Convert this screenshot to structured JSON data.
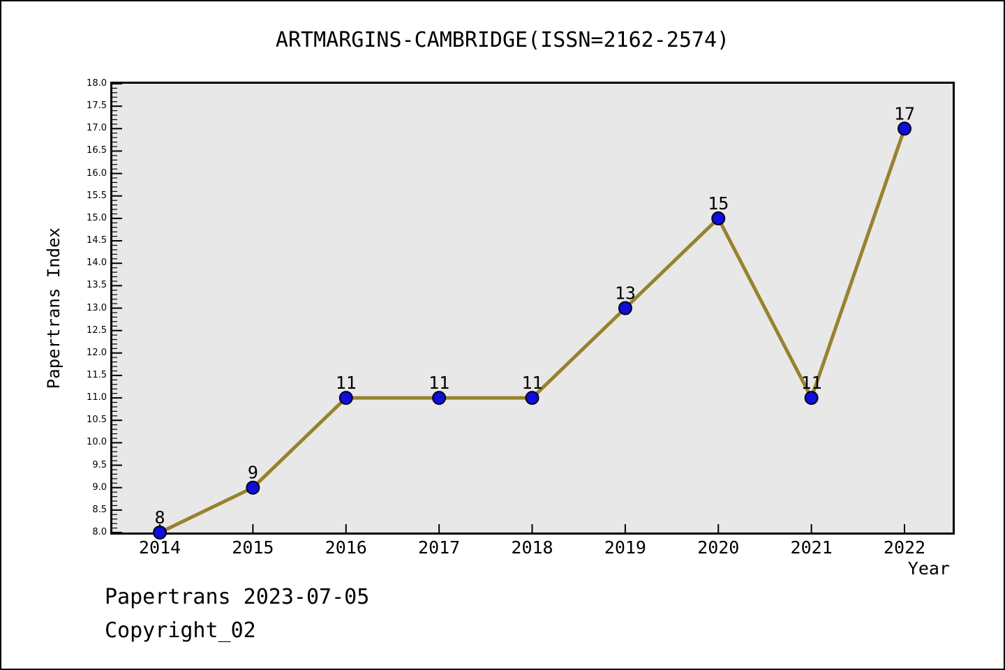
{
  "footer": {
    "line1": "Papertrans 2023-07-05",
    "line2": "Copyright_02"
  },
  "chart_data": {
    "type": "line",
    "title": "ARTMARGINS-CAMBRIDGE(ISSN=2162-2574)",
    "xlabel": "Year",
    "ylabel": "Papertrans Index",
    "categories": [
      "2014",
      "2015",
      "2016",
      "2017",
      "2018",
      "2019",
      "2020",
      "2021",
      "2022"
    ],
    "values": [
      8,
      9,
      11,
      11,
      11,
      13,
      15,
      11,
      17
    ],
    "point_labels": [
      "8",
      "9",
      "11",
      "11",
      "11",
      "13",
      "15",
      "11",
      "17"
    ],
    "series_name": "Papertrans Index",
    "ylim": [
      8.0,
      18.0
    ],
    "y_major_step": 0.5,
    "y_minor_step": 0.1,
    "y_tick_labels": [
      "8.0",
      "8.5",
      "9.0",
      "9.5",
      "10.0",
      "10.5",
      "11.0",
      "11.5",
      "12.0",
      "12.5",
      "13.0",
      "13.5",
      "14.0",
      "14.5",
      "15.0",
      "15.5",
      "16.0",
      "16.5",
      "17.0",
      "17.5",
      "18.0"
    ],
    "grid": "off",
    "legend": "none",
    "colors": {
      "line": "#97822e",
      "marker_fill": "#0f0fd8",
      "marker_edge": "#000022",
      "plot_bg": "#e8e8e8",
      "frame": "#000000",
      "text": "#000000",
      "page_bg": "#ffffff"
    }
  }
}
